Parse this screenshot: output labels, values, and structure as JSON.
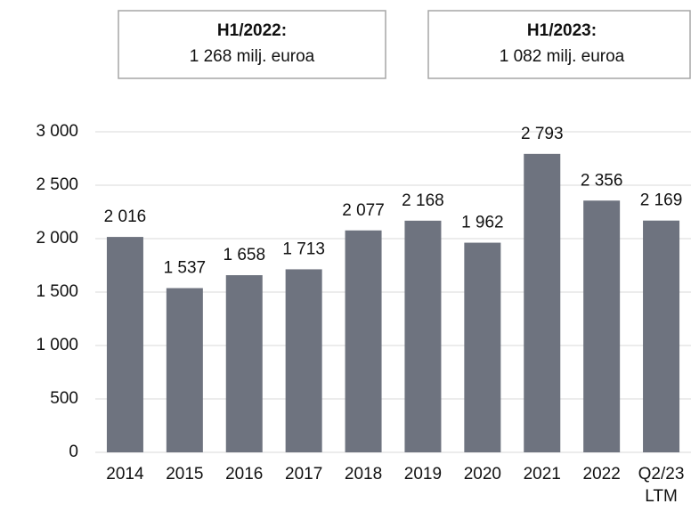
{
  "chart_data": {
    "type": "bar",
    "annotations": [
      {
        "title": "H1/2022:",
        "text": "1 268 milj. euroa"
      },
      {
        "title": "H1/2023:",
        "text": "1 082 milj. euroa"
      }
    ],
    "categories": [
      "2014",
      "2015",
      "2016",
      "2017",
      "2018",
      "2019",
      "2020",
      "2021",
      "2022",
      "Q2/23 LTM"
    ],
    "values": [
      2016,
      1537,
      1658,
      1713,
      2077,
      2168,
      1962,
      2793,
      2356,
      2169
    ],
    "value_labels": [
      "2 016",
      "1 537",
      "1 658",
      "1 713",
      "2 077",
      "2 168",
      "1 962",
      "2 793",
      "2 356",
      "2 169"
    ],
    "color": "#6e737f",
    "ylim": [
      0,
      3000
    ],
    "yticks": [
      0,
      500,
      {
        "value": 1000,
        "label": "1 000"
      },
      {
        "value": 1500,
        "label": "1 500"
      },
      {
        "value": 2000,
        "label": "2 000"
      },
      {
        "value": 2500,
        "label": "2 500"
      },
      {
        "value": 3000,
        "label": "3 000"
      }
    ],
    "grid": true
  }
}
